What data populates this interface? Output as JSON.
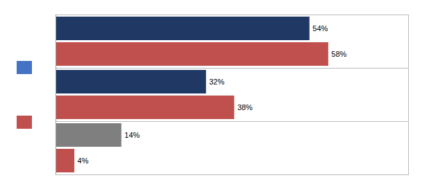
{
  "chart_data": {
    "type": "bar",
    "orientation": "horizontal",
    "categories": [
      null,
      null,
      null
    ],
    "series": [
      {
        "color": "#4472C4",
        "colors": [
          "#1F3864",
          "#1F3864",
          "#7F7F7F"
        ],
        "values": [
          54,
          32,
          14
        ],
        "value_labels": [
          "54%",
          "32%",
          "14%"
        ]
      },
      {
        "color": "#C0504D",
        "colors": [
          "#C0504D",
          "#C0504D",
          "#C0504D"
        ],
        "values": [
          58,
          38,
          4
        ],
        "value_labels": [
          "58%",
          "38%",
          "4%"
        ]
      }
    ],
    "xlim": [
      0,
      75
    ],
    "data_labels": true,
    "tick_labels": false,
    "legend": "left",
    "grid": false
  }
}
